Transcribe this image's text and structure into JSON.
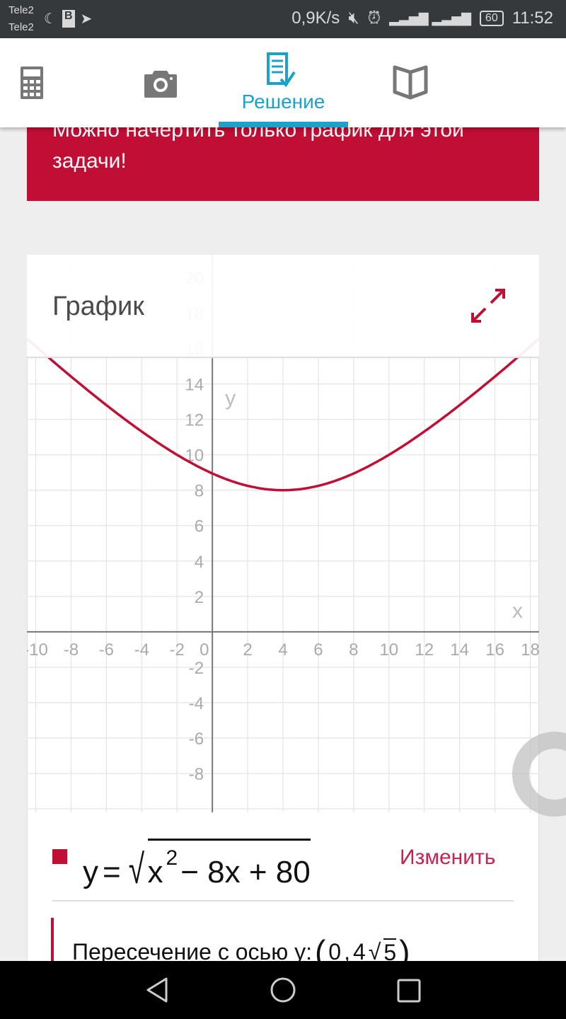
{
  "status_bar": {
    "carriers": [
      "Tele2",
      "Tele2"
    ],
    "speed": "0,9K/s",
    "battery": "60",
    "time": "11:52"
  },
  "tabs": [
    {
      "icon": "calculator-icon",
      "label": ""
    },
    {
      "icon": "camera-icon",
      "label": ""
    },
    {
      "icon": "solution-icon",
      "label": "Решение",
      "active": true
    },
    {
      "icon": "book-icon",
      "label": ""
    }
  ],
  "banner": {
    "text": "Можно начертить только график для этой задачи!"
  },
  "graph": {
    "title": "График",
    "expand_icon": "expand-icon"
  },
  "chart_data": {
    "type": "line",
    "function": "y = sqrt(x^2 - 8x + 80)",
    "xlabel": "x",
    "ylabel": "y",
    "xlim": [
      -10.5,
      18.5
    ],
    "ylim": [
      -10.2,
      21.3
    ],
    "x_ticks": [
      -10,
      -8,
      -6,
      -4,
      -2,
      0,
      2,
      4,
      6,
      8,
      10,
      12,
      14,
      16,
      18
    ],
    "y_ticks": [
      -8,
      -6,
      -4,
      -2,
      2,
      4,
      6,
      8,
      10,
      12,
      14,
      16,
      18,
      20
    ],
    "grid": true,
    "color": "#c10e34"
  },
  "formula": {
    "y": "y",
    "eq": "=",
    "x": "x",
    "exp": "2",
    "rest": "− 8x + 80"
  },
  "edit_label": "Изменить",
  "intersection": {
    "label": "Пересечение с осью y:",
    "open": "(",
    "a": "0",
    "comma": ",",
    "coef": "4",
    "radicand": "5",
    "close": ")"
  },
  "colors": {
    "accent": "#1fa0c8",
    "brand": "#c10e34"
  }
}
